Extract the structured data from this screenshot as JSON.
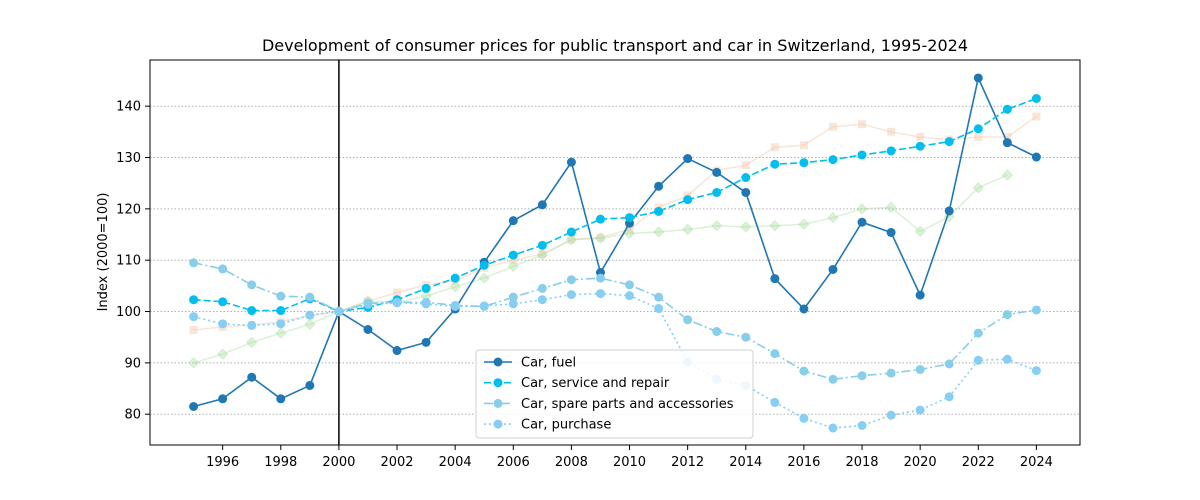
{
  "chart_data": {
    "type": "line",
    "title": "Development of consumer prices for public transport and car in Switzerland, 1995-2024",
    "ylabel": "Index (2000=100)",
    "xlabel": "",
    "xlim": [
      1993.5,
      2025.5
    ],
    "ylim": [
      74,
      149
    ],
    "xticks": [
      1996,
      1998,
      2000,
      2002,
      2004,
      2006,
      2008,
      2010,
      2012,
      2014,
      2016,
      2018,
      2020,
      2022,
      2024
    ],
    "yticks": [
      80,
      90,
      100,
      110,
      120,
      130,
      140
    ],
    "grid": "horizontal dotted",
    "reference_line_x": 2000,
    "legend_position": "bottom-center",
    "x": [
      1995,
      1996,
      1997,
      1998,
      1999,
      2000,
      2001,
      2002,
      2003,
      2004,
      2005,
      2006,
      2007,
      2008,
      2009,
      2010,
      2011,
      2012,
      2013,
      2014,
      2015,
      2016,
      2017,
      2018,
      2019,
      2020,
      2021,
      2022,
      2023,
      2024
    ],
    "series": [
      {
        "name": "Car, fuel",
        "color": "#1f77b4",
        "style": "solid",
        "marker": "circle",
        "legend": true,
        "values": [
          81.5,
          83.0,
          87.2,
          83.0,
          85.6,
          100.0,
          96.5,
          92.4,
          94.0,
          100.5,
          109.6,
          117.7,
          120.8,
          129.1,
          107.6,
          117.2,
          124.4,
          129.8,
          127.1,
          123.2,
          106.4,
          100.5,
          108.2,
          117.4,
          115.4,
          103.2,
          119.6,
          145.5,
          132.9,
          130.1
        ]
      },
      {
        "name": "Car, service and repair",
        "color": "#00bfef",
        "style": "dashed",
        "marker": "circle",
        "legend": true,
        "values": [
          102.3,
          101.9,
          100.2,
          100.2,
          102.5,
          100.0,
          100.8,
          102.3,
          104.5,
          106.5,
          109.0,
          111.0,
          112.9,
          115.5,
          118.0,
          118.3,
          119.5,
          121.8,
          123.2,
          126.1,
          128.7,
          129.0,
          129.6,
          130.5,
          131.3,
          132.2,
          133.1,
          135.6,
          139.4,
          141.5
        ]
      },
      {
        "name": "Car, spare parts and accessories",
        "color": "#87ceeb",
        "style": "dashdot",
        "marker": "circle",
        "legend": true,
        "values": [
          109.5,
          108.3,
          105.2,
          103.0,
          102.8,
          100.0,
          101.6,
          101.8,
          101.8,
          101.2,
          101.0,
          102.8,
          104.5,
          106.2,
          106.5,
          105.2,
          102.8,
          98.4,
          96.1,
          95.0,
          91.8,
          88.4,
          86.8,
          87.5,
          88.0,
          88.7,
          89.8,
          95.8,
          99.4,
          100.3
        ]
      },
      {
        "name": "Car, purchase",
        "color": "#87cef5",
        "style": "dotted",
        "marker": "circle",
        "legend": true,
        "values": [
          99.0,
          97.6,
          97.3,
          97.6,
          99.3,
          100.0,
          101.4,
          101.7,
          101.5,
          101.0,
          101.1,
          101.5,
          102.3,
          103.3,
          103.5,
          103.1,
          100.6,
          90.2,
          86.8,
          85.6,
          82.3,
          79.2,
          77.3,
          77.8,
          79.8,
          80.8,
          83.4,
          90.5,
          90.7,
          88.5
        ]
      },
      {
        "name": "",
        "color": "#f5c8a8",
        "style": "solid",
        "marker": "square",
        "opacity": 0.45,
        "legend": false,
        "values": [
          96.4,
          97.0,
          97.4,
          98.0,
          99.2,
          100.0,
          102.0,
          103.7,
          105.2,
          106.0,
          108.5,
          110.0,
          111.2,
          114.0,
          114.4,
          116.0,
          120.3,
          122.6,
          127.5,
          128.5,
          132.0,
          132.4,
          136.0,
          136.5,
          135.0,
          134.0,
          133.5,
          134.0,
          134.0,
          138.0
        ]
      },
      {
        "name": "",
        "color": "#a8dea0",
        "style": "solid",
        "marker": "diamond",
        "opacity": 0.4,
        "legend": false,
        "values": [
          90.0,
          91.7,
          94.0,
          95.8,
          97.5,
          100.0,
          102.0,
          101.8,
          103.0,
          104.8,
          106.5,
          108.8,
          111.0,
          114.0,
          114.3,
          115.2,
          115.5,
          116.0,
          116.7,
          116.5,
          116.7,
          117.0,
          118.3,
          120.0,
          120.3,
          115.6,
          118.5,
          124.1,
          126.6,
          null
        ]
      }
    ]
  }
}
